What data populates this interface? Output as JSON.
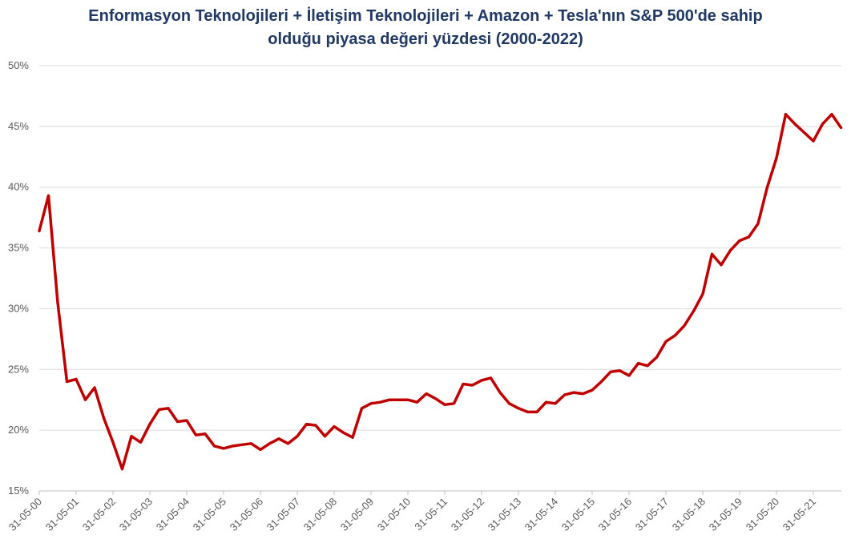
{
  "chart_data": {
    "type": "line",
    "title": "Enformasyon Teknolojileri + İletişim Teknolojileri + Amazon + Tesla'nın S&P 500'de sahip olduğu piyasa değeri yüzdesi (2000-2022)",
    "categories": [
      "31-05-00",
      null,
      null,
      null,
      "31-05-01",
      null,
      null,
      null,
      "31-05-02",
      null,
      null,
      null,
      "31-05-03",
      null,
      null,
      null,
      "31-05-04",
      null,
      null,
      null,
      "31-05-05",
      null,
      null,
      null,
      "31-05-06",
      null,
      null,
      null,
      "31-05-07",
      null,
      null,
      null,
      "31-05-08",
      null,
      null,
      null,
      "31-05-09",
      null,
      null,
      null,
      "31-05-10",
      null,
      null,
      null,
      "31-05-11",
      null,
      null,
      null,
      "31-05-12",
      null,
      null,
      null,
      "31-05-13",
      null,
      null,
      null,
      "31-05-14",
      null,
      null,
      null,
      "31-05-15",
      null,
      null,
      null,
      "31-05-16",
      null,
      null,
      null,
      "31-05-17",
      null,
      null,
      null,
      "31-05-18",
      null,
      null,
      null,
      "31-05-19",
      null,
      null,
      null,
      "31-05-20",
      null,
      null,
      null,
      "31-05-21",
      null,
      null,
      null
    ],
    "values": [
      36.4,
      39.3,
      30.5,
      24.0,
      24.2,
      22.5,
      23.5,
      21.0,
      19.0,
      16.8,
      19.5,
      19.0,
      20.5,
      21.7,
      21.8,
      20.7,
      20.8,
      19.6,
      19.7,
      18.7,
      18.5,
      18.7,
      18.8,
      18.9,
      18.4,
      18.9,
      19.3,
      18.9,
      19.5,
      20.5,
      20.4,
      19.5,
      20.3,
      19.8,
      19.4,
      21.8,
      22.2,
      22.3,
      22.5,
      22.5,
      22.5,
      22.3,
      23.0,
      22.6,
      22.1,
      22.2,
      23.8,
      23.7,
      24.1,
      24.3,
      23.1,
      22.2,
      21.8,
      21.5,
      21.5,
      22.3,
      22.2,
      22.9,
      23.1,
      23.0,
      23.3,
      24.0,
      24.8,
      24.9,
      24.5,
      25.5,
      25.3,
      26.0,
      27.3,
      27.8,
      28.6,
      29.8,
      31.2,
      34.5,
      33.6,
      34.8,
      35.6,
      35.9,
      37.0,
      40.0,
      42.4,
      46.0,
      45.2,
      44.5,
      43.8,
      45.2,
      46.0,
      44.9
    ],
    "color": "#c00000",
    "ylim": [
      15,
      50
    ],
    "yticks": [
      {
        "value": 15,
        "label": "15%"
      },
      {
        "value": 20,
        "label": "20%"
      },
      {
        "value": 25,
        "label": "25%"
      },
      {
        "value": 30,
        "label": "30%"
      },
      {
        "value": 35,
        "label": "35%"
      },
      {
        "value": 40,
        "label": "40%"
      },
      {
        "value": 45,
        "label": "45%"
      },
      {
        "value": 50,
        "label": "50%"
      }
    ],
    "grid": true
  }
}
